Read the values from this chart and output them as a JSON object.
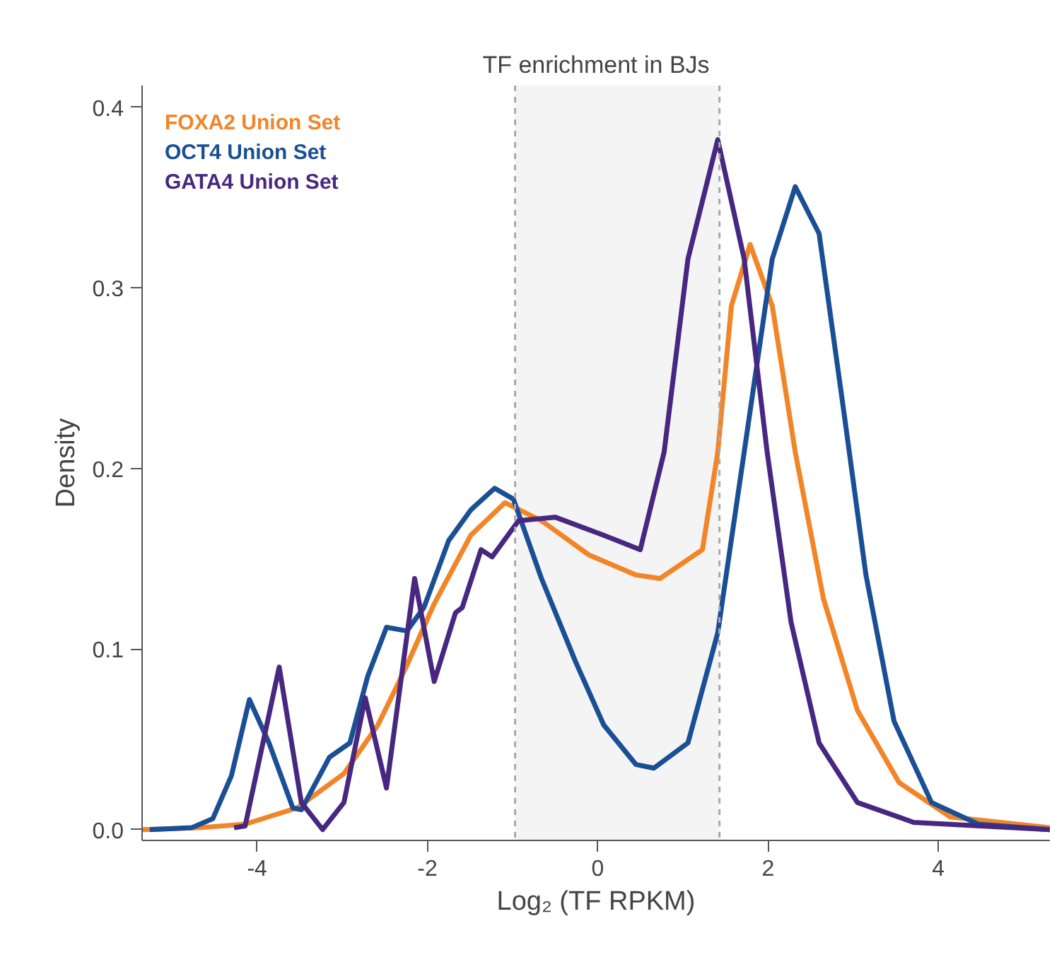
{
  "chart_data": {
    "type": "line",
    "title": "TF enrichment in BJs",
    "xlabel": "Log₂ (TF RPKM)",
    "ylabel": "Density",
    "xlim": [
      -5.35,
      5.31
    ],
    "ylim": [
      -0.006,
      0.412
    ],
    "xticks": [
      -4,
      -2,
      0,
      2,
      4
    ],
    "yticks": [
      {
        "value": 0,
        "label": "0.0"
      },
      0.1,
      0.2,
      0.3,
      0.4
    ],
    "grid": false,
    "line_style": "solid",
    "marker": "none",
    "bands": [
      {
        "axis": "x",
        "from": -0.97,
        "to": 1.43,
        "color": "#f4f4f4"
      }
    ],
    "ref_lines": [
      {
        "axis": "x",
        "value": -0.97,
        "color": "#aaaaaa",
        "line_style": "dashed"
      },
      {
        "axis": "x",
        "value": 1.43,
        "color": "#aaaaaa",
        "line_style": "dashed"
      }
    ],
    "series": [
      {
        "name": "FOXA2 Union Set",
        "color": "#f28527",
        "x": [
          -5.35,
          -4.69,
          -4.14,
          -3.53,
          -2.98,
          -2.58,
          -2.25,
          -1.92,
          -1.49,
          -1.09,
          -0.66,
          -0.1,
          0.45,
          0.73,
          1.23,
          1.41,
          1.57,
          1.79,
          2.05,
          2.32,
          2.65,
          3.05,
          3.54,
          4.14,
          5.31
        ],
        "values": [
          0,
          0.001,
          0.003,
          0.012,
          0.031,
          0.058,
          0.09,
          0.125,
          0.163,
          0.181,
          0.171,
          0.152,
          0.141,
          0.139,
          0.155,
          0.209,
          0.29,
          0.324,
          0.29,
          0.209,
          0.128,
          0.066,
          0.026,
          0.007,
          0.001
        ]
      },
      {
        "name": "OCT4 Union Set",
        "color": "#1a4f95",
        "x": [
          -5.26,
          -4.77,
          -4.52,
          -4.3,
          -4.09,
          -3.86,
          -3.58,
          -3.48,
          -3.15,
          -2.91,
          -2.7,
          -2.48,
          -2.24,
          -2.04,
          -1.75,
          -1.49,
          -1.21,
          -0.99,
          -0.66,
          -0.26,
          0.07,
          0.45,
          0.66,
          1.06,
          1.41,
          1.72,
          2.05,
          2.32,
          2.6,
          2.88,
          3.15,
          3.48,
          3.92,
          4.47,
          5.31
        ],
        "values": [
          0,
          0.001,
          0.006,
          0.03,
          0.072,
          0.048,
          0.012,
          0.011,
          0.04,
          0.048,
          0.085,
          0.112,
          0.11,
          0.123,
          0.16,
          0.177,
          0.189,
          0.183,
          0.139,
          0.093,
          0.058,
          0.036,
          0.034,
          0.048,
          0.109,
          0.209,
          0.316,
          0.356,
          0.33,
          0.235,
          0.141,
          0.06,
          0.015,
          0.003,
          0
        ]
      },
      {
        "name": "GATA4 Union Set",
        "color": "#47277f",
        "x": [
          -4.27,
          -4.14,
          -3.74,
          -3.48,
          -3.23,
          -2.98,
          -2.73,
          -2.48,
          -2.15,
          -1.92,
          -1.67,
          -1.59,
          -1.37,
          -1.24,
          -0.93,
          -0.5,
          0.07,
          0.5,
          0.78,
          1.06,
          1.41,
          1.72,
          1.99,
          2.27,
          2.6,
          3.05,
          3.71,
          5.31
        ],
        "values": [
          0.001,
          0.002,
          0.09,
          0.015,
          0.0,
          0.015,
          0.073,
          0.023,
          0.139,
          0.082,
          0.12,
          0.123,
          0.155,
          0.151,
          0.171,
          0.173,
          0.163,
          0.155,
          0.209,
          0.316,
          0.382,
          0.316,
          0.209,
          0.115,
          0.048,
          0.015,
          0.004,
          0
        ]
      }
    ]
  }
}
